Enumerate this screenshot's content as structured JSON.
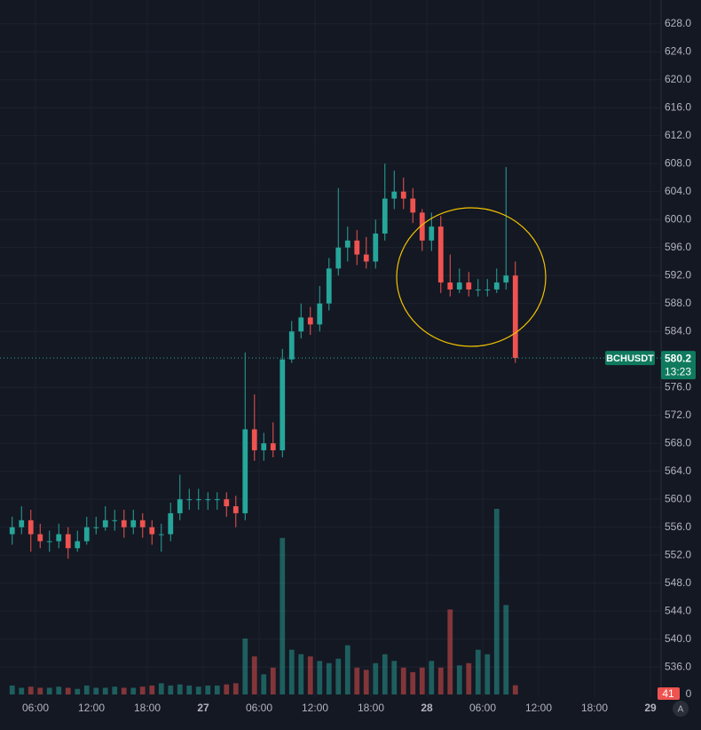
{
  "chart_data": {
    "type": "candlestick",
    "symbol": "BCHUSDT",
    "countdown": "13:23",
    "auto_button": "A",
    "x": [
      3,
      4,
      5,
      6,
      7,
      8,
      9,
      10,
      11,
      12,
      13,
      14,
      15,
      16,
      17,
      18,
      19,
      20,
      21,
      22,
      23,
      24,
      25,
      26,
      27,
      28,
      29,
      30,
      31,
      32,
      33,
      34,
      35,
      36,
      37,
      38,
      39,
      40,
      41,
      42,
      43,
      44,
      45,
      46,
      47,
      48,
      49,
      50,
      51,
      52,
      53,
      54,
      55,
      56,
      57
    ],
    "open": [
      555,
      556,
      557,
      555,
      554,
      554,
      555,
      553,
      554,
      556,
      556,
      557,
      557,
      556,
      557,
      556,
      555,
      555,
      558,
      560,
      560,
      560,
      560,
      560,
      559,
      558,
      570,
      567,
      568,
      567,
      580,
      584,
      586,
      585,
      588,
      593,
      596,
      597,
      595,
      594,
      598,
      603,
      604,
      603,
      601,
      597,
      599,
      591,
      590,
      591,
      590,
      590,
      590,
      591,
      592
    ],
    "high": [
      557.5,
      559,
      558.5,
      556.5,
      555.5,
      556.5,
      556,
      555.5,
      557.5,
      557.5,
      559,
      558.5,
      558.5,
      558.5,
      558,
      557,
      556.5,
      559.5,
      563.5,
      561.5,
      561.5,
      561,
      561,
      561,
      560.5,
      581,
      575,
      569.5,
      571,
      581.5,
      585.5,
      588,
      587.5,
      590.5,
      594.5,
      604.5,
      599,
      598.5,
      597.5,
      600,
      608,
      607,
      606,
      604.5,
      601.5,
      601,
      600.5,
      595,
      593,
      592.5,
      591.5,
      591.5,
      593,
      607.5,
      594
    ],
    "low": [
      553.5,
      555,
      552.5,
      553,
      552.5,
      553,
      551.5,
      552.5,
      553.5,
      555,
      555.5,
      555.5,
      554.5,
      555,
      554.5,
      553.5,
      552.5,
      554,
      557,
      558.5,
      558.5,
      558.5,
      558.5,
      557.5,
      556,
      557,
      565.5,
      565.5,
      566,
      566,
      579.5,
      583,
      583.5,
      584,
      587,
      592,
      594,
      593.5,
      593,
      593,
      597,
      601.5,
      601.5,
      599.5,
      595.5,
      595.5,
      589.5,
      589,
      589.5,
      589,
      589,
      589,
      589.5,
      590,
      579.5
    ],
    "close": [
      556,
      557,
      555,
      554,
      554,
      555,
      553,
      554,
      556,
      556,
      557,
      557,
      556,
      557,
      556,
      555,
      555,
      558,
      560,
      560,
      560,
      560,
      560,
      559,
      558,
      570,
      567,
      568,
      567,
      580,
      584,
      586,
      585,
      588,
      593,
      596,
      597,
      595,
      594,
      598,
      603,
      604,
      603,
      601,
      597,
      599,
      591,
      590,
      591,
      590,
      590,
      590,
      591,
      592,
      580.2
    ],
    "volume": [
      40,
      30,
      35,
      30,
      30,
      35,
      30,
      25,
      40,
      30,
      30,
      35,
      30,
      30,
      35,
      40,
      50,
      40,
      45,
      40,
      35,
      40,
      40,
      45,
      50,
      250,
      170,
      90,
      120,
      700,
      200,
      180,
      170,
      150,
      140,
      160,
      220,
      120,
      110,
      140,
      180,
      150,
      120,
      100,
      120,
      150,
      120,
      380,
      130,
      140,
      200,
      180,
      830,
      400,
      41
    ],
    "volume_yticks": [
      0
    ],
    "up_color": "#26a69a",
    "down_color": "#ef5350",
    "xlim": [
      2.19,
      73.14
    ],
    "xticks": [
      {
        "value": 6,
        "label": "06:00"
      },
      {
        "value": 12,
        "label": "12:00"
      },
      {
        "value": 18,
        "label": "18:00"
      },
      {
        "value": 24,
        "label": "27"
      },
      {
        "value": 30,
        "label": "06:00"
      },
      {
        "value": 36,
        "label": "12:00"
      },
      {
        "value": 42,
        "label": "18:00"
      },
      {
        "value": 48,
        "label": "28"
      },
      {
        "value": 54,
        "label": "06:00"
      },
      {
        "value": 60,
        "label": "12:00"
      },
      {
        "value": 66,
        "label": "18:00"
      },
      {
        "value": 72,
        "label": "29"
      }
    ],
    "ylim": [
      531.7,
      631.4
    ],
    "yticks": [
      {
        "value": 536,
        "label": "536.0"
      },
      {
        "value": 540,
        "label": "540.0"
      },
      {
        "value": 544,
        "label": "544.0"
      },
      {
        "value": 548,
        "label": "548.0"
      },
      {
        "value": 552,
        "label": "552.0"
      },
      {
        "value": 556,
        "label": "556.0"
      },
      {
        "value": 560,
        "label": "560.0"
      },
      {
        "value": 564,
        "label": "564.0"
      },
      {
        "value": 568,
        "label": "568.0"
      },
      {
        "value": 572,
        "label": "572.0"
      },
      {
        "value": 576,
        "label": "576.0"
      },
      {
        "value": 584,
        "label": "584.0"
      },
      {
        "value": 588,
        "label": "588.0"
      },
      {
        "value": 592,
        "label": "592.0"
      },
      {
        "value": 596,
        "label": "596.0"
      },
      {
        "value": 600,
        "label": "600.0"
      },
      {
        "value": 604,
        "label": "604.0"
      },
      {
        "value": 608,
        "label": "608.0"
      },
      {
        "value": 612,
        "label": "612.0"
      },
      {
        "value": 616,
        "label": "616.0"
      },
      {
        "value": 620,
        "label": "620.0"
      },
      {
        "value": 624,
        "label": "624.0"
      },
      {
        "value": 628,
        "label": "628.0"
      }
    ],
    "grid": true
  }
}
